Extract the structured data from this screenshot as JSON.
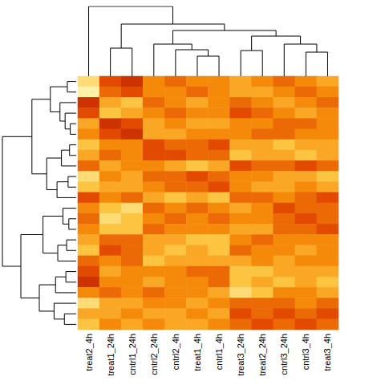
{
  "chart_data": {
    "type": "heatmap",
    "tick_labels": "x",
    "categories": [
      "treat2_4h",
      "treat1_24h",
      "cntrl1_24h",
      "cntrl2_24h",
      "cntrl2_4h",
      "treat1_4h",
      "cntrl1_4h",
      "treat3_24h",
      "treat2_24h",
      "cntrl3_24h",
      "cntrl3_4h",
      "treat3_4h"
    ],
    "zlim": [
      1,
      9
    ],
    "values": [
      [
        8,
        3,
        2,
        5,
        4,
        5,
        5,
        6,
        5,
        4,
        5,
        6
      ],
      [
        9,
        4,
        3,
        5,
        5,
        4,
        5,
        6,
        6,
        5,
        4,
        5
      ],
      [
        2,
        6,
        7,
        4,
        5,
        6,
        5,
        4,
        5,
        6,
        5,
        4
      ],
      [
        3,
        7,
        6,
        5,
        4,
        5,
        5,
        3,
        4,
        5,
        6,
        5
      ],
      [
        6,
        2,
        3,
        6,
        5,
        6,
        6,
        5,
        5,
        4,
        4,
        5
      ],
      [
        5,
        3,
        2,
        6,
        6,
        5,
        5,
        5,
        4,
        4,
        5,
        5
      ],
      [
        7,
        5,
        5,
        3,
        4,
        4,
        3,
        6,
        6,
        7,
        6,
        6
      ],
      [
        6,
        4,
        5,
        3,
        3,
        4,
        4,
        7,
        6,
        6,
        7,
        6
      ],
      [
        4,
        6,
        5,
        5,
        6,
        7,
        6,
        3,
        4,
        4,
        3,
        4
      ],
      [
        8,
        5,
        6,
        4,
        4,
        3,
        4,
        5,
        5,
        6,
        6,
        7
      ],
      [
        7,
        6,
        6,
        5,
        4,
        4,
        3,
        5,
        6,
        6,
        5,
        6
      ],
      [
        3,
        5,
        4,
        6,
        7,
        6,
        7,
        4,
        4,
        5,
        4,
        3
      ],
      [
        5,
        7,
        8,
        4,
        5,
        4,
        5,
        6,
        5,
        3,
        4,
        4
      ],
      [
        4,
        8,
        7,
        5,
        4,
        5,
        4,
        5,
        5,
        4,
        3,
        4
      ],
      [
        5,
        7,
        7,
        4,
        5,
        5,
        5,
        6,
        6,
        4,
        4,
        3
      ],
      [
        6,
        4,
        4,
        6,
        6,
        7,
        7,
        5,
        4,
        5,
        5,
        5
      ],
      [
        7,
        3,
        4,
        6,
        7,
        6,
        7,
        4,
        5,
        5,
        6,
        5
      ],
      [
        4,
        5,
        4,
        7,
        6,
        6,
        6,
        6,
        5,
        6,
        5,
        5
      ],
      [
        3,
        6,
        5,
        5,
        5,
        4,
        4,
        7,
        7,
        6,
        6,
        6
      ],
      [
        2,
        5,
        5,
        6,
        5,
        5,
        4,
        7,
        6,
        7,
        6,
        7
      ],
      [
        5,
        4,
        5,
        4,
        5,
        5,
        6,
        8,
        7,
        5,
        5,
        6
      ],
      [
        8,
        6,
        6,
        5,
        5,
        6,
        5,
        4,
        4,
        4,
        5,
        4
      ],
      [
        6,
        6,
        5,
        6,
        6,
        5,
        6,
        3,
        4,
        3,
        4,
        3
      ],
      [
        7,
        5,
        6,
        5,
        6,
        6,
        5,
        4,
        3,
        4,
        3,
        4
      ]
    ],
    "column_tree": {
      "h": 87,
      "c": [
        0,
        {
          "h": 65,
          "c": [
            {
              "h": 35,
              "c": [
                1,
                2
              ]
            },
            {
              "h": 57,
              "c": [
                {
                  "h": 40,
                  "c": [
                    3,
                    {
                      "h": 33,
                      "c": [
                        4,
                        {
                          "h": 25,
                          "c": [
                            5,
                            6
                          ]
                        }
                      ]
                    }
                  ]
                },
                {
                  "h": 50,
                  "c": [
                    {
                      "h": 32,
                      "c": [
                        7,
                        8
                      ]
                    },
                    {
                      "h": 40,
                      "c": [
                        9,
                        {
                          "h": 30,
                          "c": [
                            10,
                            11
                          ]
                        }
                      ]
                    }
                  ]
                }
              ]
            }
          ]
        }
      ]
    },
    "row_tree": {
      "h": 100,
      "c": [
        {
          "h": 60,
          "c": [
            {
              "h": 35,
              "c": [
                {
                  "h": 12,
                  "c": [
                    0,
                    1
                  ]
                },
                {
                  "h": 22,
                  "c": [
                    2,
                    {
                      "h": 15,
                      "c": [
                        3,
                        {
                          "h": 8,
                          "c": [
                            4,
                            5
                          ]
                        }
                      ]
                    }
                  ]
                }
              ]
            },
            {
              "h": 40,
              "c": [
                {
                  "h": 20,
                  "c": [
                    {
                      "h": 9,
                      "c": [
                        6,
                        7
                      ]
                    },
                    8
                  ]
                },
                {
                  "h": 26,
                  "c": [
                    {
                      "h": 11,
                      "c": [
                        9,
                        10
                      ]
                    },
                    11
                  ]
                }
              ]
            }
          ]
        },
        {
          "h": 75,
          "c": [
            {
              "h": 45,
              "c": [
                {
                  "h": 18,
                  "c": [
                    12,
                    {
                      "h": 10,
                      "c": [
                        13,
                        14
                      ]
                    }
                  ]
                },
                {
                  "h": 25,
                  "c": [
                    {
                      "h": 13,
                      "c": [
                        15,
                        16
                      ]
                    },
                    17
                  ]
                }
              ]
            },
            {
              "h": 50,
              "c": [
                {
                  "h": 28,
                  "c": [
                    {
                      "h": 14,
                      "c": [
                        18,
                        19
                      ]
                    },
                    20
                  ]
                },
                {
                  "h": 30,
                  "c": [
                    21,
                    {
                      "h": 16,
                      "c": [
                        22,
                        23
                      ]
                    }
                  ]
                }
              ]
            }
          ]
        }
      ]
    }
  }
}
